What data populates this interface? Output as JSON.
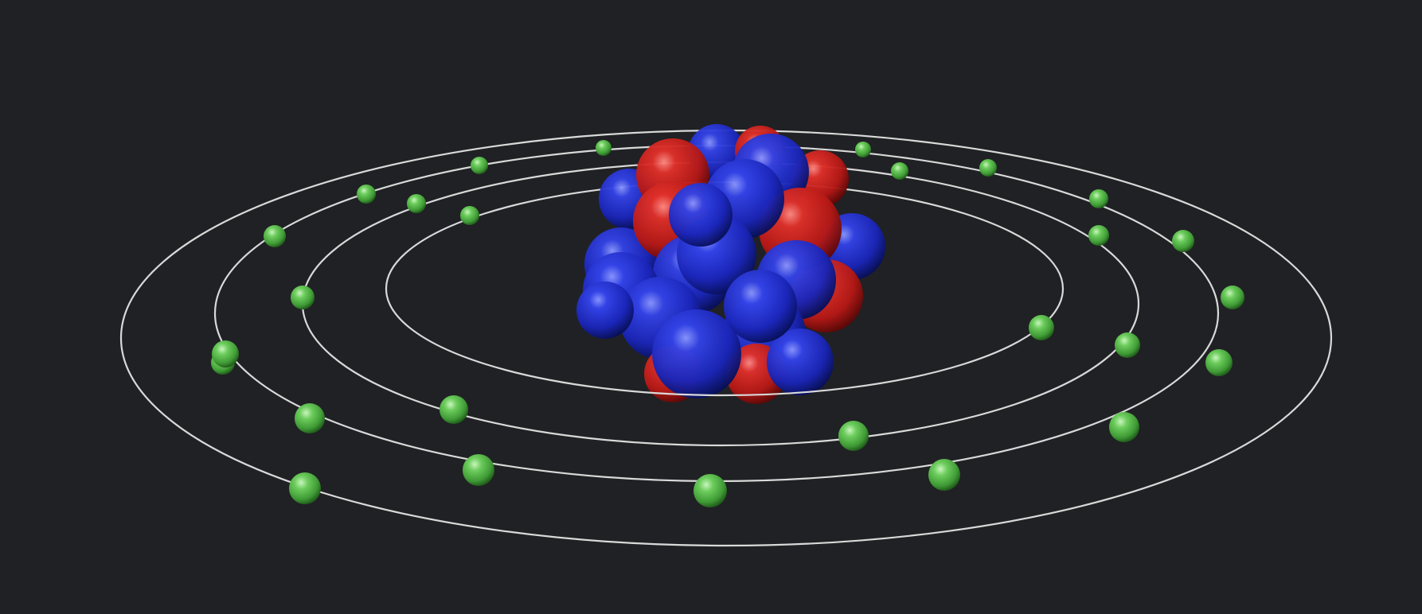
{
  "scene": {
    "name": "atom-model",
    "colors": {
      "background": "#202124",
      "orbit": "#d9d9d9",
      "proton": "#c8201c",
      "neutron": "#1b2bd0",
      "electron": "#5cc04f"
    },
    "shells": [
      {
        "name": "shell-1",
        "electrons": 2
      },
      {
        "name": "shell-2",
        "electrons": 8
      },
      {
        "name": "shell-3",
        "electrons": 14
      },
      {
        "name": "shell-4",
        "electrons": 12
      }
    ],
    "electron_count": 36,
    "nucleus": {
      "protons_visible": 12,
      "neutrons_visible": 26
    }
  }
}
